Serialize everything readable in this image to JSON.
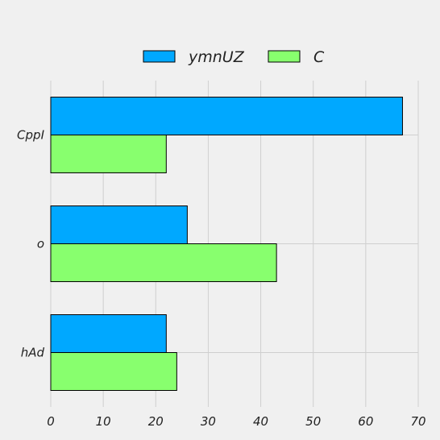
{
  "chart_data": {
    "type": "bar",
    "orientation": "horizontal",
    "categories": [
      "CppI",
      "o",
      "hAd"
    ],
    "series": [
      {
        "name": "ymnUZ",
        "color": "#00a8ff",
        "values": [
          67,
          26,
          22
        ]
      },
      {
        "name": "C",
        "color": "#88ff6e",
        "values": [
          22,
          43,
          24
        ]
      }
    ],
    "xlim": [
      0,
      70
    ],
    "xticks": [
      "0",
      "10",
      "20",
      "30",
      "40",
      "50",
      "60",
      "70"
    ],
    "grid": true,
    "legend_position": "top-center",
    "title": "",
    "xlabel": "",
    "ylabel": ""
  }
}
